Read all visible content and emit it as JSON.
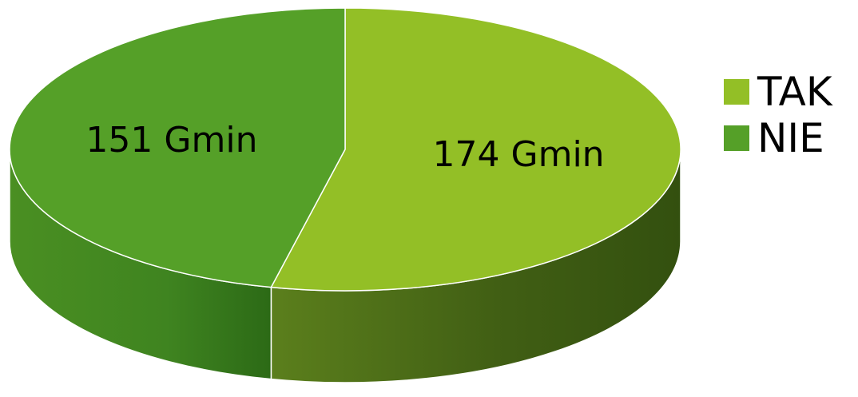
{
  "chart_data": {
    "type": "pie",
    "style": "3d",
    "slices": [
      {
        "label": "TAK",
        "value": 174,
        "data_label": "174 Gmin",
        "color": "#93BF26"
      },
      {
        "label": "NIE",
        "value": 151,
        "data_label": "151 Gmin",
        "color": "#55A028"
      }
    ],
    "legend": {
      "position": "right"
    },
    "title": ""
  }
}
